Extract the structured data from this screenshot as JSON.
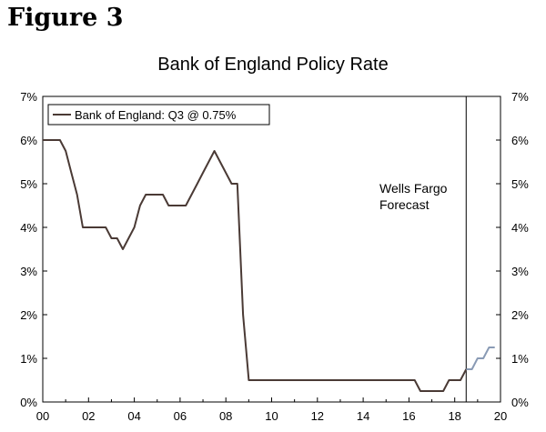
{
  "figure_label": "Figure 3",
  "chart_data": {
    "type": "line",
    "title": "Bank of England Policy Rate",
    "xlabel": "",
    "ylabel": "",
    "xlim": [
      2000,
      2020
    ],
    "ylim": [
      0,
      7
    ],
    "x_ticks": [
      {
        "value": 2000,
        "label": "00"
      },
      {
        "value": 2002,
        "label": "02"
      },
      {
        "value": 2004,
        "label": "04"
      },
      {
        "value": 2006,
        "label": "06"
      },
      {
        "value": 2008,
        "label": "08"
      },
      {
        "value": 2010,
        "label": "10"
      },
      {
        "value": 2012,
        "label": "12"
      },
      {
        "value": 2014,
        "label": "14"
      },
      {
        "value": 2016,
        "label": "16"
      },
      {
        "value": 2018,
        "label": "18"
      },
      {
        "value": 2020,
        "label": "20"
      }
    ],
    "y_ticks": [
      {
        "value": 0,
        "label": "0%"
      },
      {
        "value": 1,
        "label": "1%"
      },
      {
        "value": 2,
        "label": "2%"
      },
      {
        "value": 3,
        "label": "3%"
      },
      {
        "value": 4,
        "label": "4%"
      },
      {
        "value": 5,
        "label": "5%"
      },
      {
        "value": 6,
        "label": "6%"
      },
      {
        "value": 7,
        "label": "7%"
      }
    ],
    "grid": false,
    "legend_position": "top-left",
    "series": [
      {
        "name": "Bank of England: Q3 @ 0.75%",
        "color": "#4a3a35",
        "x": [
          2000.0,
          2000.75,
          2001.0,
          2001.25,
          2001.5,
          2001.75,
          2002.0,
          2002.5,
          2002.75,
          2003.0,
          2003.25,
          2003.5,
          2003.75,
          2004.0,
          2004.25,
          2004.5,
          2004.75,
          2005.25,
          2005.5,
          2005.75,
          2006.25,
          2006.5,
          2006.75,
          2007.0,
          2007.25,
          2007.5,
          2007.75,
          2008.0,
          2008.25,
          2008.5,
          2008.75,
          2009.0,
          2016.25,
          2016.5,
          2017.5,
          2017.75,
          2018.0,
          2018.25,
          2018.5
        ],
        "y": [
          6.0,
          6.0,
          5.75,
          5.25,
          4.75,
          4.0,
          4.0,
          4.0,
          4.0,
          3.75,
          3.75,
          3.5,
          3.75,
          4.0,
          4.5,
          4.75,
          4.75,
          4.75,
          4.5,
          4.5,
          4.5,
          4.75,
          5.0,
          5.25,
          5.5,
          5.75,
          5.5,
          5.25,
          5.0,
          5.0,
          2.0,
          0.5,
          0.5,
          0.25,
          0.25,
          0.5,
          0.5,
          0.5,
          0.75
        ]
      },
      {
        "name": "",
        "color": "#8a9bb5",
        "x": [
          2018.5,
          2018.75,
          2019.0,
          2019.25,
          2019.5,
          2019.75
        ],
        "y": [
          0.75,
          0.75,
          1.0,
          1.0,
          1.25,
          1.25
        ]
      }
    ],
    "forecast_start": 2018.5,
    "annotations": [
      {
        "text_lines": [
          "Wells Fargo",
          "Forecast"
        ]
      }
    ]
  }
}
